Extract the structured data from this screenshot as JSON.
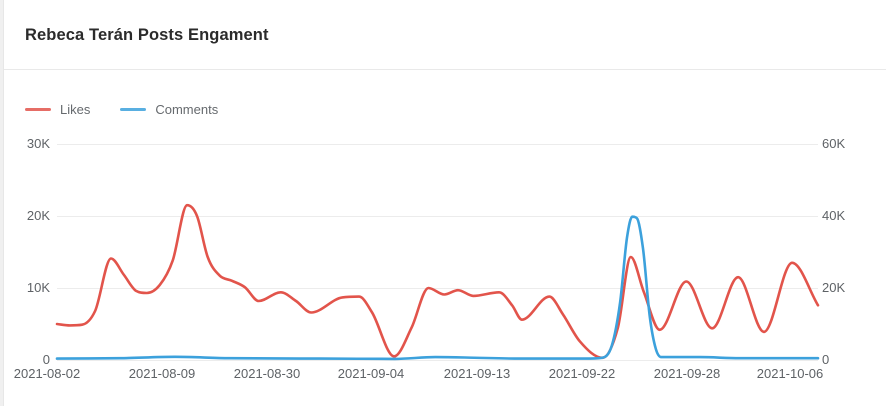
{
  "header": {
    "title": "Rebeca Terán Posts Engament"
  },
  "colors": {
    "page_background": "#f0f0f0",
    "card_background": "#ffffff",
    "divider": "#e9e9e9",
    "gridline": "#ececec",
    "axis_text": "#5e6266",
    "title_text": "#2b2b2b",
    "likes_line": "#e2544b",
    "comments_line": "#3ca1dc"
  },
  "chart_data": {
    "type": "line",
    "title": "Rebeca Terán Posts Engament",
    "grid": true,
    "legend_position": "top-left",
    "x_axis": {
      "type": "category",
      "tick_labels": [
        "2021-08-02",
        "2021-08-09",
        "2021-08-30",
        "2021-09-04",
        "2021-09-13",
        "2021-09-22",
        "2021-09-28",
        "2021-10-06"
      ]
    },
    "left_axis": {
      "series": "Likes",
      "tick_labels": [
        "30K",
        "20K",
        "10K",
        "0"
      ],
      "range": [
        0,
        30000
      ]
    },
    "right_axis": {
      "series": "Comments",
      "tick_labels": [
        "60K",
        "40K",
        "20K",
        "0"
      ],
      "range": [
        0,
        60000
      ]
    },
    "x_unit": "percent-of-axis",
    "series": [
      {
        "name": "Likes",
        "axis": "left",
        "color": "#e2544b",
        "points": [
          [
            0,
            5000
          ],
          [
            1.7,
            4800
          ],
          [
            3.3,
            4900
          ],
          [
            5.0,
            6800
          ],
          [
            7.1,
            14100
          ],
          [
            8.8,
            11800
          ],
          [
            10.4,
            9600
          ],
          [
            11.8,
            9300
          ],
          [
            13.5,
            10400
          ],
          [
            15.2,
            13800
          ],
          [
            17.1,
            21500
          ],
          [
            18.4,
            20000
          ],
          [
            19.8,
            14300
          ],
          [
            21.4,
            11700
          ],
          [
            23.0,
            11000
          ],
          [
            24.7,
            10100
          ],
          [
            26.5,
            8200
          ],
          [
            29.4,
            9400
          ],
          [
            31.4,
            8200
          ],
          [
            33.4,
            6600
          ],
          [
            37.5,
            8700
          ],
          [
            39.7,
            8800
          ],
          [
            41.4,
            6600
          ],
          [
            44.3,
            500
          ],
          [
            46.6,
            4500
          ],
          [
            48.8,
            10000
          ],
          [
            50.9,
            9100
          ],
          [
            52.7,
            9700
          ],
          [
            54.7,
            8900
          ],
          [
            58.1,
            9400
          ],
          [
            59.8,
            7600
          ],
          [
            61.1,
            5600
          ],
          [
            64.7,
            8800
          ],
          [
            66.5,
            6300
          ],
          [
            68.7,
            2600
          ],
          [
            71.7,
            300
          ],
          [
            73.7,
            4500
          ],
          [
            75.4,
            14300
          ],
          [
            77.1,
            9500
          ],
          [
            79.2,
            4200
          ],
          [
            82.7,
            10900
          ],
          [
            86.1,
            4400
          ],
          [
            89.5,
            11500
          ],
          [
            92.9,
            3900
          ],
          [
            96.6,
            13500
          ],
          [
            100,
            7600
          ]
        ]
      },
      {
        "name": "Comments",
        "axis": "right",
        "color": "#3ca1dc",
        "points": [
          [
            0,
            400
          ],
          [
            8.3,
            500
          ],
          [
            15.5,
            900
          ],
          [
            22.7,
            500
          ],
          [
            34.6,
            400
          ],
          [
            44.4,
            300
          ],
          [
            49.7,
            800
          ],
          [
            53.6,
            700
          ],
          [
            60.8,
            400
          ],
          [
            69.4,
            400
          ],
          [
            71.6,
            600
          ],
          [
            72.9,
            4000
          ],
          [
            74.0,
            16000
          ],
          [
            74.9,
            34000
          ],
          [
            75.6,
            39800
          ],
          [
            76.2,
            39400
          ],
          [
            77.0,
            31000
          ],
          [
            77.9,
            12000
          ],
          [
            78.7,
            3000
          ],
          [
            79.4,
            800
          ],
          [
            84.5,
            800
          ],
          [
            89.7,
            500
          ],
          [
            100,
            500
          ]
        ]
      }
    ]
  }
}
